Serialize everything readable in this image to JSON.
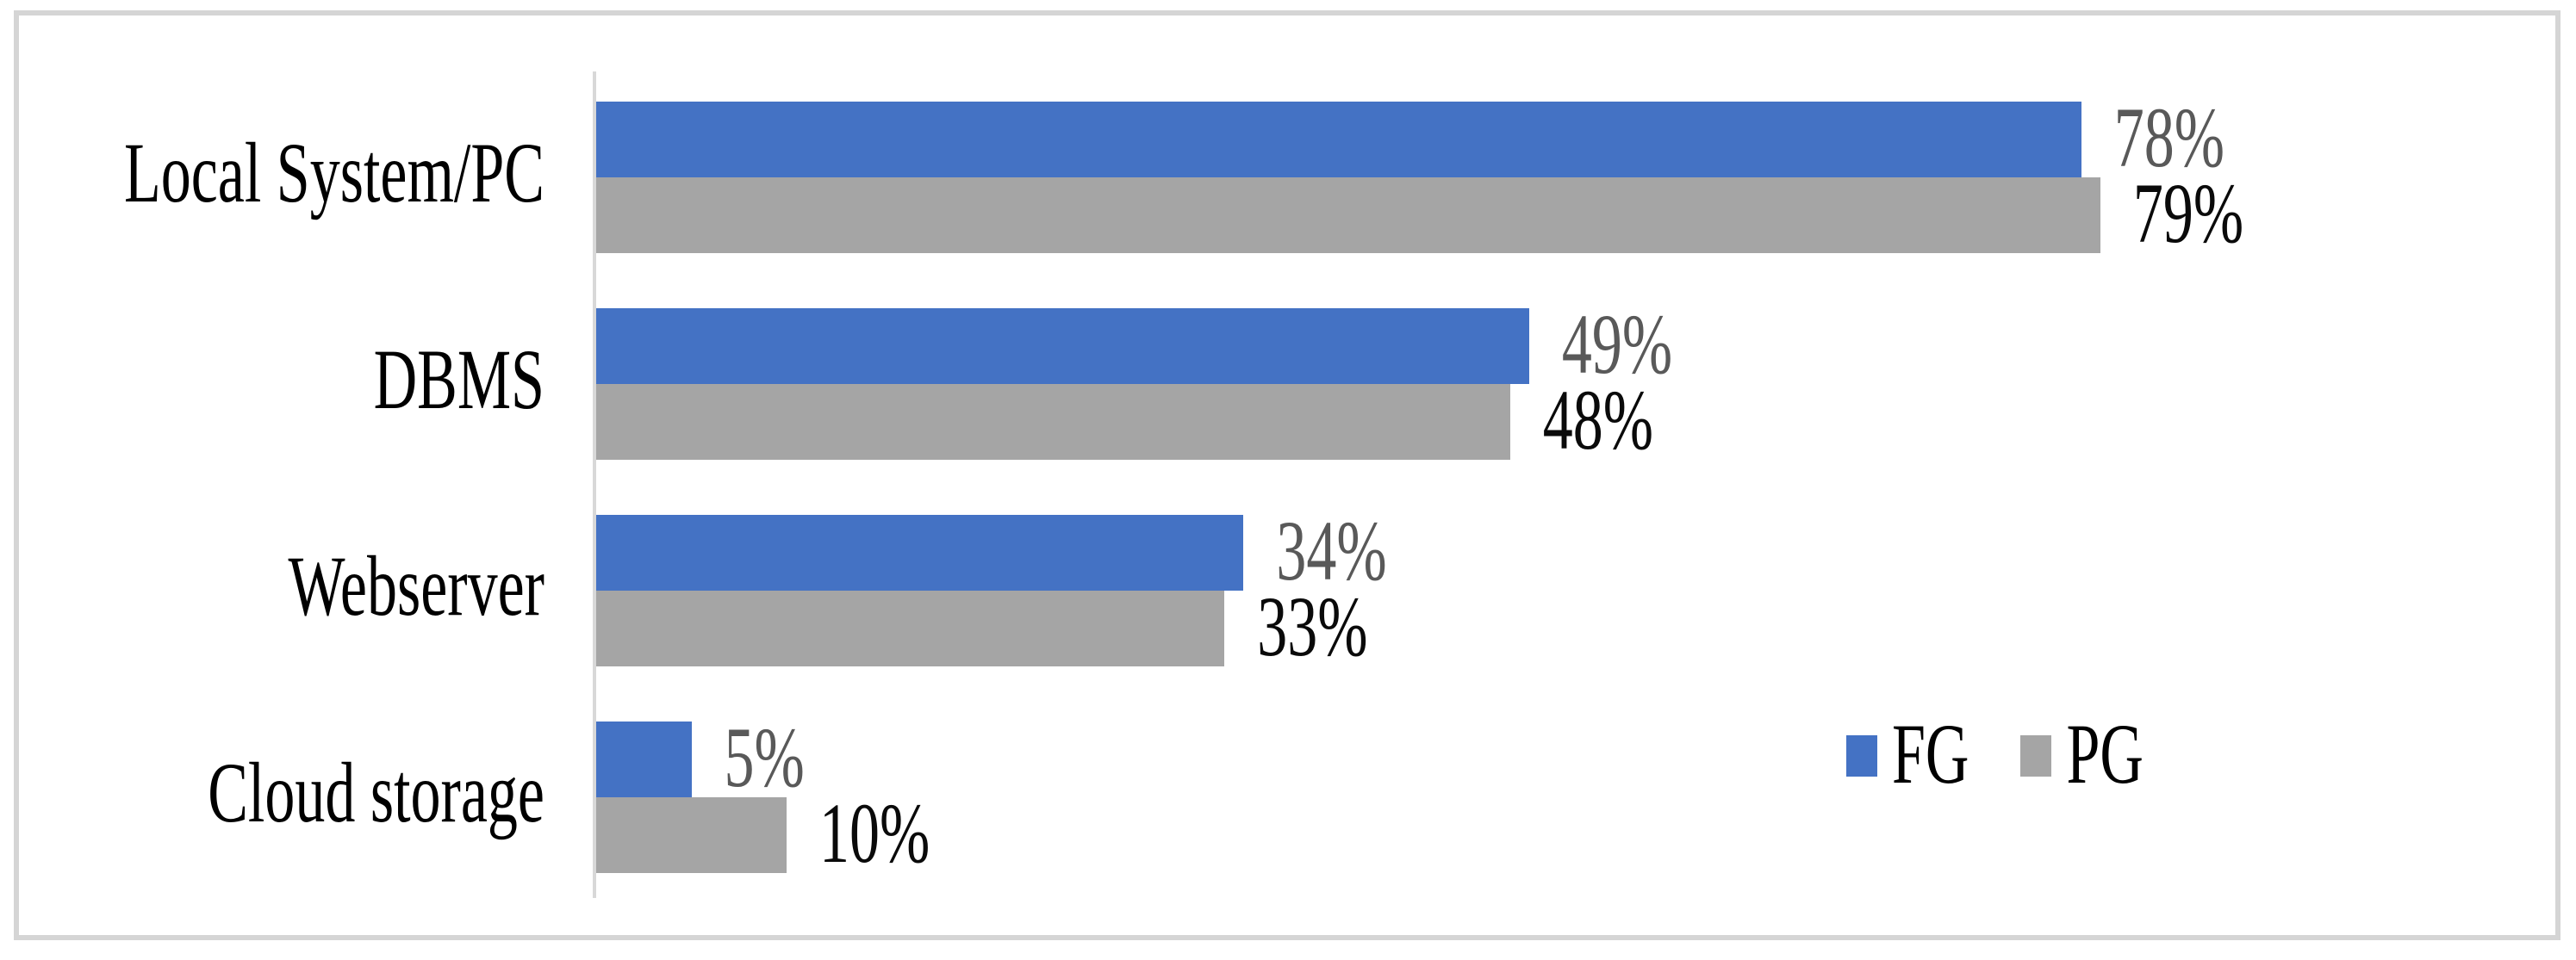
{
  "chart_data": {
    "type": "bar",
    "orientation": "horizontal",
    "title": "",
    "categories": [
      "Local System/PC",
      "DBMS",
      "Webserver",
      "Cloud storage"
    ],
    "series": [
      {
        "name": "FG",
        "color": "#4472C4",
        "label_color": "#595959",
        "values": [
          78,
          49,
          34,
          5
        ],
        "labels": [
          "78%",
          "49%",
          "34%",
          "5%"
        ]
      },
      {
        "name": "PG",
        "color": "#A5A5A5",
        "label_color": "#0A0A0A",
        "values": [
          79,
          48,
          33,
          10
        ],
        "labels": [
          "79%",
          "48%",
          "33%",
          "10%"
        ]
      }
    ],
    "xlim": [
      0,
      100
    ],
    "value_format": "percent",
    "grid": false,
    "legend_position": "inside-right-lower",
    "axis_line_color": "#D8D8D8",
    "frame_color": "#D5D5D5",
    "background_color": "#FFFFFF"
  }
}
